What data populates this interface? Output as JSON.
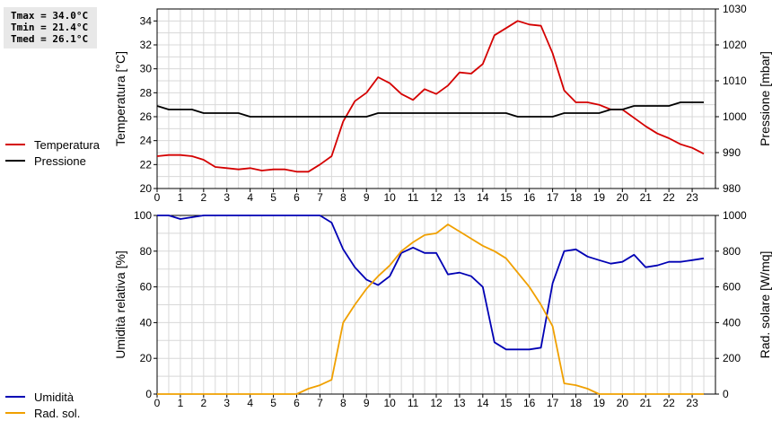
{
  "stats": {
    "tmax": "Tmax = 34.0°C",
    "tmin": "Tmin = 21.4°C",
    "tmed": "Tmed = 26.1°C"
  },
  "chart_data": [
    {
      "type": "line",
      "xlim": [
        0,
        24
      ],
      "x_ticks": [
        0,
        1,
        2,
        3,
        4,
        5,
        6,
        7,
        8,
        9,
        10,
        11,
        12,
        13,
        14,
        15,
        16,
        17,
        18,
        19,
        20,
        21,
        22,
        23
      ],
      "ylabel_left": "Temperatura [°C]",
      "ylabel_right": "Pressione [mbar]",
      "ylim_left": [
        20,
        35
      ],
      "ylim_right": [
        980,
        1030
      ],
      "yticks_left": [
        20,
        22,
        24,
        26,
        28,
        30,
        32,
        34
      ],
      "yticks_right": [
        980,
        990,
        1000,
        1010,
        1020,
        1030
      ],
      "grid": true,
      "legend_position": "left",
      "series": [
        {
          "name": "Temperatura",
          "axis": "left",
          "color": "#d40000",
          "x": [
            0,
            0.5,
            1,
            1.5,
            2,
            2.5,
            3,
            3.5,
            4,
            4.5,
            5,
            5.5,
            6,
            6.5,
            7,
            7.5,
            8,
            8.5,
            9,
            9.5,
            10,
            10.5,
            11,
            11.5,
            12,
            12.5,
            13,
            13.5,
            14,
            14.5,
            15,
            15.5,
            16,
            16.5,
            17,
            17.5,
            18,
            18.5,
            19,
            19.5,
            20,
            20.5,
            21,
            21.5,
            22,
            22.5,
            23,
            23.5
          ],
          "values": [
            22.7,
            22.8,
            22.8,
            22.7,
            22.4,
            21.8,
            21.7,
            21.6,
            21.7,
            21.5,
            21.6,
            21.6,
            21.4,
            21.4,
            22.0,
            22.7,
            25.6,
            27.3,
            28.0,
            29.3,
            28.8,
            27.9,
            27.4,
            28.3,
            27.9,
            28.6,
            29.7,
            29.6,
            30.4,
            32.8,
            33.4,
            34.0,
            33.7,
            33.6,
            31.3,
            28.2,
            27.2,
            27.2,
            27.0,
            26.6,
            26.6,
            25.9,
            25.2,
            24.6,
            24.2,
            23.7,
            23.4,
            22.9
          ]
        },
        {
          "name": "Pressione",
          "axis": "right",
          "color": "#000000",
          "x": [
            0,
            0.5,
            1,
            1.5,
            2,
            2.5,
            3,
            3.5,
            4,
            4.5,
            5,
            5.5,
            6,
            6.5,
            7,
            7.5,
            8,
            8.5,
            9,
            9.5,
            10,
            10.5,
            11,
            11.5,
            12,
            12.5,
            13,
            13.5,
            14,
            14.5,
            15,
            15.5,
            16,
            16.5,
            17,
            17.5,
            18,
            18.5,
            19,
            19.5,
            20,
            20.5,
            21,
            21.5,
            22,
            22.5,
            23,
            23.5
          ],
          "values": [
            1003,
            1002,
            1002,
            1002,
            1001,
            1001,
            1001,
            1001,
            1000,
            1000,
            1000,
            1000,
            1000,
            1000,
            1000,
            1000,
            1000,
            1000,
            1000,
            1001,
            1001,
            1001,
            1001,
            1001,
            1001,
            1001,
            1001,
            1001,
            1001,
            1001,
            1001,
            1000,
            1000,
            1000,
            1000,
            1001,
            1001,
            1001,
            1001,
            1002,
            1002,
            1003,
            1003,
            1003,
            1003,
            1004,
            1004,
            1004
          ]
        }
      ]
    },
    {
      "type": "line",
      "xlim": [
        0,
        24
      ],
      "x_ticks": [
        0,
        1,
        2,
        3,
        4,
        5,
        6,
        7,
        8,
        9,
        10,
        11,
        12,
        13,
        14,
        15,
        16,
        17,
        18,
        19,
        20,
        21,
        22,
        23
      ],
      "ylabel_left": "Umidità relativa [%]",
      "ylabel_right": "Rad. solare [W/mq]",
      "ylim_left": [
        0,
        100
      ],
      "ylim_right": [
        0,
        1000
      ],
      "yticks_left": [
        0,
        20,
        40,
        60,
        80,
        100
      ],
      "yticks_right": [
        0,
        200,
        400,
        600,
        800,
        1000
      ],
      "grid": true,
      "legend_position": "left",
      "series": [
        {
          "name": "Umidità",
          "axis": "left",
          "color": "#0000b4",
          "x": [
            0,
            0.5,
            1,
            1.5,
            2,
            2.5,
            3,
            3.5,
            4,
            4.5,
            5,
            5.5,
            6,
            6.5,
            7,
            7.5,
            8,
            8.5,
            9,
            9.5,
            10,
            10.5,
            11,
            11.5,
            12,
            12.5,
            13,
            13.5,
            14,
            14.5,
            15,
            15.5,
            16,
            16.5,
            17,
            17.5,
            18,
            18.5,
            19,
            19.5,
            20,
            20.5,
            21,
            21.5,
            22,
            22.5,
            23,
            23.5
          ],
          "values": [
            100,
            100,
            98,
            99,
            100,
            100,
            100,
            100,
            100,
            100,
            100,
            100,
            100,
            100,
            100,
            96,
            81,
            71,
            64,
            61,
            66,
            79,
            82,
            79,
            79,
            67,
            68,
            66,
            60,
            29,
            25,
            25,
            25,
            26,
            62,
            80,
            81,
            77,
            75,
            73,
            74,
            78,
            71,
            72,
            74,
            74,
            75,
            76
          ]
        },
        {
          "name": "Rad. sol.",
          "axis": "right",
          "color": "#f0a000",
          "x": [
            0,
            0.5,
            1,
            1.5,
            2,
            2.5,
            3,
            3.5,
            4,
            4.5,
            5,
            5.5,
            6,
            6.5,
            7,
            7.5,
            8,
            8.5,
            9,
            9.5,
            10,
            10.5,
            11,
            11.5,
            12,
            12.5,
            13,
            13.5,
            14,
            14.5,
            15,
            15.5,
            16,
            16.5,
            17,
            17.5,
            18,
            18.5,
            19,
            19.5,
            20,
            20.5,
            21,
            21.5,
            22,
            22.5,
            23,
            23.5
          ],
          "values": [
            0,
            0,
            0,
            0,
            0,
            0,
            0,
            0,
            0,
            0,
            0,
            0,
            0,
            30,
            50,
            80,
            400,
            500,
            590,
            660,
            720,
            800,
            850,
            890,
            900,
            950,
            910,
            870,
            830,
            800,
            760,
            680,
            600,
            500,
            380,
            60,
            50,
            30,
            0,
            0,
            0,
            0,
            0,
            0,
            0,
            0,
            0,
            0
          ]
        }
      ]
    }
  ]
}
